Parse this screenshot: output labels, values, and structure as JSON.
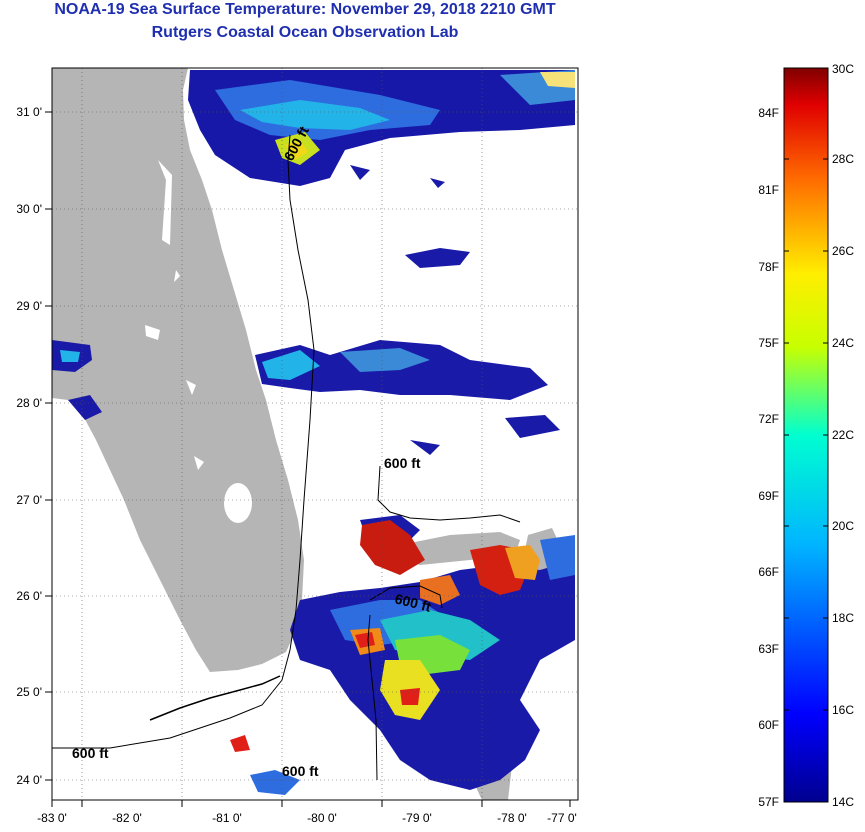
{
  "header": {
    "title": "NOAA-19 Sea Surface Temperature:  November 29, 2018 2210 GMT",
    "subtitle": "Rutgers Coastal Ocean Observation Lab"
  },
  "map": {
    "lon_labels": [
      "-83 0'",
      "-82 0'",
      "-81 0'",
      "-80 0'",
      "-79 0'",
      "-78 0'",
      "-77 0'"
    ],
    "lat_labels": [
      "31 0'",
      "30 0'",
      "29 0'",
      "28 0'",
      "27 0'",
      "26 0'",
      "25 0'",
      "24 0'"
    ],
    "contour_labels": [
      "600 ft",
      "600 ft",
      "600 ft",
      "600 ft",
      "600 ft"
    ],
    "colors": {
      "land": "#b5b5b5",
      "cold": "#1a1aa8",
      "warm": "#d42010"
    }
  },
  "colorbar": {
    "celsius": [
      "30C",
      "28C",
      "26C",
      "24C",
      "22C",
      "20C",
      "18C",
      "16C",
      "14C"
    ],
    "fahrenheit": [
      "84F",
      "81F",
      "78F",
      "75F",
      "72F",
      "69F",
      "66F",
      "63F",
      "60F",
      "57F"
    ]
  }
}
